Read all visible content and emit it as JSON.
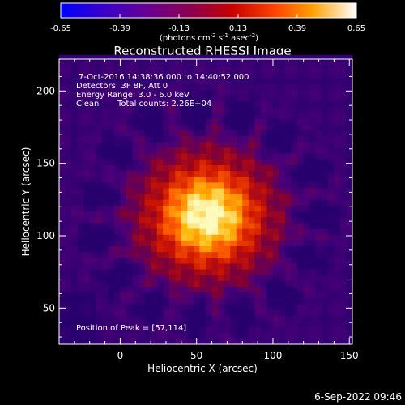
{
  "chart_data": {
    "type": "heatmap",
    "title": "Reconstructed RHESSI Image",
    "xlabel": "Heliocentric X (arcsec)",
    "ylabel": "Heliocentric Y (arcsec)",
    "xlim": [
      -40,
      152
    ],
    "ylim": [
      25,
      222
    ],
    "x_ticks": [
      0,
      50,
      100,
      150
    ],
    "y_ticks": [
      50,
      100,
      150,
      200
    ],
    "colorbar": {
      "min": -0.65,
      "max": 0.65,
      "ticks": [
        "-0.65",
        "-0.39",
        "-0.13",
        "0.13",
        "0.39",
        "0.65"
      ],
      "units": [
        "(photons cm",
        "-2",
        " s",
        "-1",
        " asec",
        "-2",
        ")"
      ]
    },
    "annotations": {
      "time": "7-Oct-2016 14:38:36.000 to 14:40:52.000",
      "detectors": "Detectors: 3F 8F, Att 0",
      "energy": "Energy Range: 3.0 - 6.0 keV",
      "method": "Clean",
      "counts": "Total counts: 2.26E+04",
      "peak": "Position of Peak = [57,114]"
    },
    "peak_position": [
      57,
      114
    ],
    "timestamp": "6-Sep-2022 09:46"
  }
}
